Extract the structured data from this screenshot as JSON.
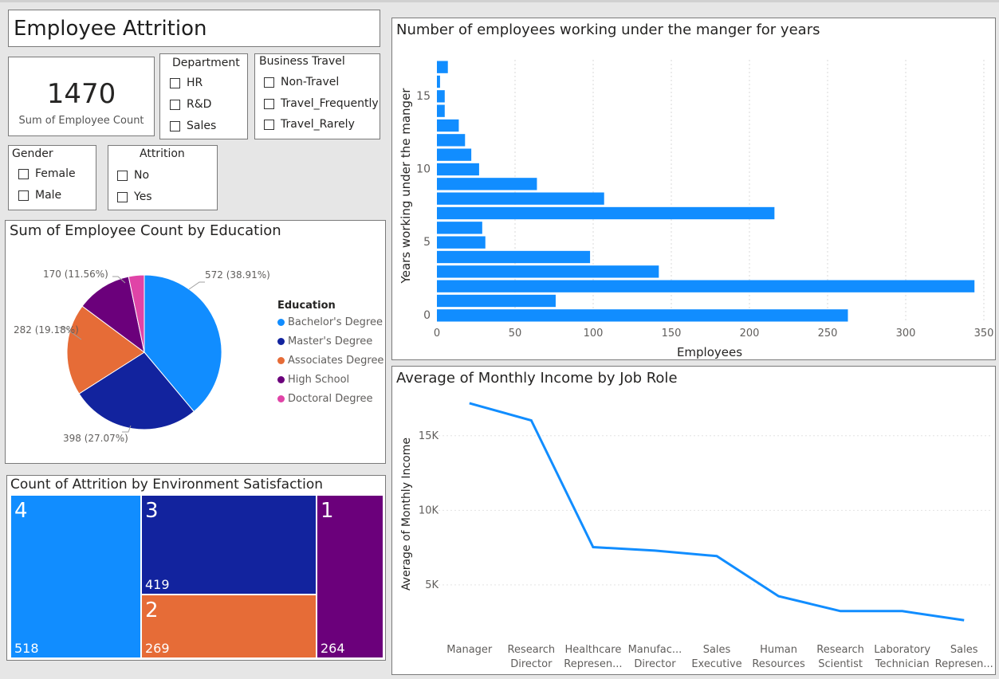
{
  "dashboard": {
    "title": "Employee Attrition",
    "kpi": {
      "value": "1470",
      "label": "Sum of Employee Count"
    }
  },
  "slicers": {
    "department": {
      "title": "Department",
      "options": [
        "HR",
        "R&D",
        "Sales"
      ]
    },
    "business_travel": {
      "title": "Business Travel",
      "options": [
        "Non-Travel",
        "Travel_Frequently",
        "Travel_Rarely"
      ]
    },
    "gender": {
      "title": "Gender",
      "options": [
        "Female",
        "Male"
      ]
    },
    "attrition": {
      "title": "Attrition",
      "options": [
        "No",
        "Yes"
      ]
    }
  },
  "colors": {
    "blue": "#118dff",
    "navy": "#12239e",
    "orange": "#e66c37",
    "purple": "#6b007b",
    "pink": "#e044a7"
  },
  "chart_data": [
    {
      "type": "bar",
      "title": "Number of employees working under the manger for years",
      "xlabel": "Employees",
      "ylabel": "Years working under the manger",
      "categories": [
        0,
        1,
        2,
        3,
        4,
        5,
        6,
        7,
        8,
        9,
        10,
        11,
        12,
        13,
        14,
        15,
        16,
        17
      ],
      "values": [
        263,
        76,
        344,
        142,
        98,
        31,
        29,
        216,
        107,
        64,
        27,
        22,
        18,
        14,
        5,
        5,
        2,
        7
      ],
      "xlim": [
        0,
        350
      ],
      "xticks": [
        "0",
        "50",
        "100",
        "150",
        "200",
        "250",
        "300",
        "350"
      ],
      "yticks": [
        "0",
        "5",
        "10",
        "15"
      ],
      "grid": true
    },
    {
      "type": "pie",
      "title": "Sum of Employee Count by Education",
      "legend_title": "Education",
      "categories": [
        "Bachelor's Degree",
        "Master's Degree",
        "Associates Degree",
        "High School",
        "Doctoral Degree"
      ],
      "values": [
        572,
        398,
        282,
        170,
        48
      ],
      "data_labels": [
        "572 (38.91%)",
        "398 (27.07%)",
        "282 (19.18%)",
        "170 (11.56%)",
        ""
      ],
      "colors": [
        "#118dff",
        "#12239e",
        "#e66c37",
        "#6b007b",
        "#e044a7"
      ]
    },
    {
      "type": "treemap",
      "title": "Count of Attrition by Environment Satisfaction",
      "categories": [
        "4",
        "3",
        "2",
        "1"
      ],
      "values": [
        518,
        419,
        269,
        264
      ],
      "colors": [
        "#118dff",
        "#12239e",
        "#e66c37",
        "#6b007b"
      ]
    },
    {
      "type": "line",
      "title": "Average of Monthly Income by Job Role",
      "ylabel": "Average of Monthly Income",
      "categories": [
        "Manager",
        "Research Director",
        "Healthcare Represen...",
        "Manufac... Director",
        "Sales Executive",
        "Human Resources",
        "Research Scientist",
        "Laboratory Technician",
        "Sales Represen..."
      ],
      "values": [
        17180,
        16030,
        7530,
        7300,
        6930,
        4240,
        3240,
        3240,
        2630
      ],
      "ylim": [
        2000,
        17500
      ],
      "yticks": [
        "5K",
        "10K",
        "15K"
      ]
    }
  ]
}
